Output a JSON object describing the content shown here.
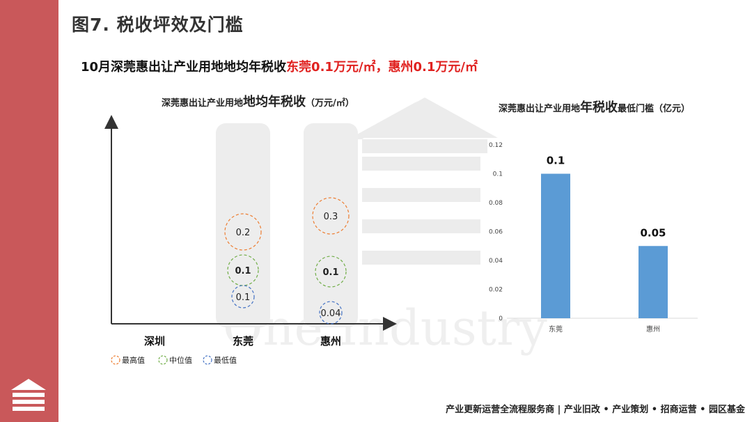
{
  "page_title": "图7. 税收坪效及门槛",
  "subtitle": {
    "prefix": "10月深莞惠出让产业用地地均年税收",
    "part1": "东莞0.1万元/㎡",
    "sep": "，",
    "part2": "惠州0.1万元/㎡"
  },
  "watermark_text": "One Industry",
  "footer": "产业更新运营全流程服务商 | 产业旧改 • 产业策划 • 招商运营 • 园区基金",
  "colors": {
    "sidebar": "#c9585a",
    "bar": "#5b9bd5",
    "highlight": "#e0211f",
    "max": "#ed7d31",
    "median": "#70ad47",
    "min": "#4472c4",
    "pill": "#ededed"
  },
  "chart_data": [
    {
      "type": "scatter",
      "title_prefix": "深莞惠出让产业用地",
      "title_main": "地均年税收",
      "title_suffix": "（万元/㎡）",
      "categories": [
        "深圳",
        "东莞",
        "惠州"
      ],
      "series": [
        {
          "name": "最高值",
          "values": [
            null,
            0.2,
            0.3
          ]
        },
        {
          "name": "中位值",
          "values": [
            null,
            0.1,
            0.1
          ]
        },
        {
          "name": "最低值",
          "values": [
            null,
            0.1,
            0.04
          ]
        }
      ],
      "labels": {
        "max": [
          null,
          "0.2",
          "0.3"
        ],
        "median": [
          null,
          "0.1",
          "0.1"
        ],
        "min": [
          null,
          "0.1",
          "0.04"
        ]
      },
      "legend_position": "bottom-left",
      "grid": false
    },
    {
      "type": "bar",
      "title_prefix": "深莞惠出让产业用地",
      "title_main": "年税收",
      "title_suffix": "最低门槛（亿元）",
      "categories": [
        "东莞",
        "惠州"
      ],
      "values": [
        0.1,
        0.05
      ],
      "data_labels": [
        "0.1",
        "0.05"
      ],
      "ylim": [
        0,
        0.12
      ],
      "yticks": [
        "0",
        "0.02",
        "0.04",
        "0.06",
        "0.08",
        "0.1",
        "0.12"
      ],
      "grid": false
    }
  ]
}
